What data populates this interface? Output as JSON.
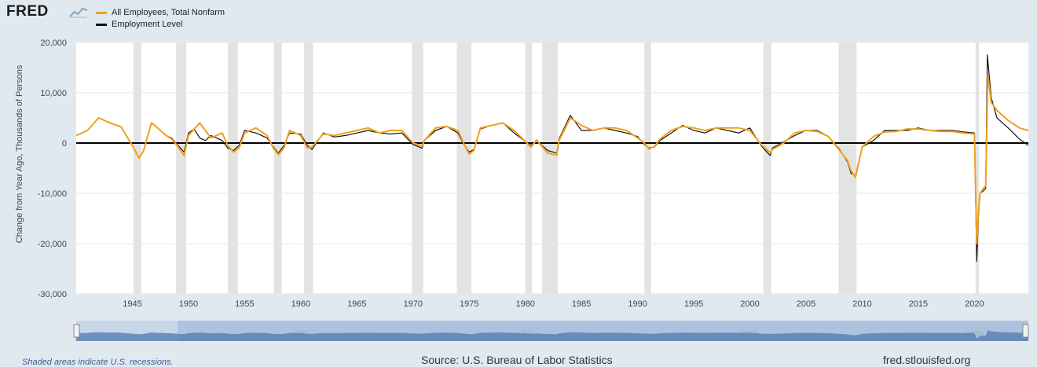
{
  "brand": {
    "logo": "FRED",
    "logo_icon": "line-chart-icon"
  },
  "footer": {
    "recession_note": "Shaded areas indicate U.S. recessions.",
    "source": "Source: U.S. Bureau of Labor Statistics",
    "site": "fred.stlouisfed.org"
  },
  "colors": {
    "series1": "#f0a01e",
    "series2": "#111111",
    "recession": "#e3e3e3",
    "navigator": "#4f79ad"
  },
  "chart_data": {
    "type": "line",
    "title": "",
    "xlabel": "",
    "ylabel": "Change from Year Ago, Thousands of Persons",
    "xlim": [
      1940,
      2024.8
    ],
    "ylim": [
      -30000,
      20000
    ],
    "y_ticks": [
      {
        "value": 20000,
        "label": "20,000"
      },
      {
        "value": 10000,
        "label": "10,000"
      },
      {
        "value": 0,
        "label": "0"
      },
      {
        "value": -10000,
        "label": "-10,000"
      },
      {
        "value": -20000,
        "label": "-20,000"
      },
      {
        "value": -30000,
        "label": "-30,000"
      }
    ],
    "x_ticks": [
      {
        "value": 1945,
        "label": "1945"
      },
      {
        "value": 1950,
        "label": "1950"
      },
      {
        "value": 1955,
        "label": "1955"
      },
      {
        "value": 1960,
        "label": "1960"
      },
      {
        "value": 1965,
        "label": "1965"
      },
      {
        "value": 1970,
        "label": "1970"
      },
      {
        "value": 1975,
        "label": "1975"
      },
      {
        "value": 1980,
        "label": "1980"
      },
      {
        "value": 1985,
        "label": "1985"
      },
      {
        "value": 1990,
        "label": "1990"
      },
      {
        "value": 1995,
        "label": "1995"
      },
      {
        "value": 2000,
        "label": "2000"
      },
      {
        "value": 2005,
        "label": "2005"
      },
      {
        "value": 2010,
        "label": "2010"
      },
      {
        "value": 2015,
        "label": "2015"
      },
      {
        "value": 2020,
        "label": "2020"
      }
    ],
    "navigator_ticks": [
      {
        "value": 1960,
        "label": "1960"
      },
      {
        "value": 1980,
        "label": "1980"
      },
      {
        "value": 2000,
        "label": "2000"
      },
      {
        "value": 2020,
        "label": "2020"
      }
    ],
    "recessions": [
      [
        1945.1,
        1945.8
      ],
      [
        1948.9,
        1949.8
      ],
      [
        1953.5,
        1954.4
      ],
      [
        1957.6,
        1958.3
      ],
      [
        1960.3,
        1961.1
      ],
      [
        1969.9,
        1970.9
      ],
      [
        1973.9,
        1975.2
      ],
      [
        1980.0,
        1980.6
      ],
      [
        1981.5,
        1982.9
      ],
      [
        1990.6,
        1991.2
      ],
      [
        2001.2,
        2001.9
      ],
      [
        2007.9,
        2009.5
      ],
      [
        2020.1,
        2020.4
      ]
    ],
    "series": [
      {
        "name": "All Employees, Total Nonfarm",
        "color": "#f0a01e",
        "x": [
          1940,
          1941,
          1942,
          1943,
          1944,
          1945,
          1945.6,
          1946,
          1946.7,
          1947,
          1948,
          1948.5,
          1949,
          1949.6,
          1950,
          1951,
          1951.5,
          1952,
          1953,
          1953.5,
          1954,
          1954.5,
          1955,
          1956,
          1957,
          1957.5,
          1958,
          1958.5,
          1959,
          1960,
          1960.6,
          1961,
          1962,
          1963,
          1964,
          1965,
          1966,
          1967,
          1968,
          1969,
          1970,
          1970.8,
          1971,
          1972,
          1973,
          1974,
          1974.5,
          1975,
          1975.4,
          1976,
          1977,
          1978,
          1979,
          1980,
          1980.5,
          1981,
          1982,
          1982.8,
          1983,
          1984,
          1985,
          1986,
          1987,
          1988,
          1989,
          1990,
          1990.6,
          1991,
          1991.5,
          1992,
          1993,
          1994,
          1995,
          1996,
          1997,
          1998,
          1999,
          2000,
          2001,
          2001.8,
          2002,
          2003,
          2004,
          2005,
          2006,
          2007,
          2008,
          2008.7,
          2009,
          2009.4,
          2010,
          2011,
          2012,
          2013,
          2014,
          2015,
          2016,
          2017,
          2018,
          2019,
          2020.0,
          2020.2,
          2020.35,
          2020.5,
          2020.8,
          2021,
          2021.2,
          2021.5,
          2022,
          2023,
          2024,
          2024.8
        ],
        "y": [
          1500,
          2500,
          5000,
          4000,
          3200,
          -500,
          -3000,
          -1500,
          4000,
          3500,
          1500,
          800,
          -500,
          -2500,
          1500,
          4000,
          2500,
          1000,
          2000,
          -500,
          -1800,
          -1000,
          2000,
          3000,
          1500,
          -800,
          -2300,
          -1000,
          2500,
          1500,
          -1000,
          -800,
          1800,
          1500,
          2000,
          2500,
          3000,
          2000,
          2500,
          2500,
          0,
          -600,
          500,
          3000,
          3300,
          2500,
          0,
          -2200,
          -1500,
          3000,
          3500,
          4000,
          2500,
          300,
          -800,
          600,
          -2000,
          -2400,
          500,
          5000,
          3500,
          2500,
          3000,
          3000,
          2500,
          1000,
          0,
          -1200,
          -700,
          800,
          2500,
          3300,
          3000,
          2500,
          3000,
          3000,
          3000,
          2500,
          -300,
          -1900,
          -1300,
          0,
          2000,
          2500,
          2300,
          1300,
          -1500,
          -3500,
          -5500,
          -6800,
          -800,
          1300,
          2200,
          2300,
          2800,
          2800,
          2500,
          2300,
          2300,
          2000,
          1800,
          -20000,
          -14000,
          -10000,
          -9000,
          -8500,
          13500,
          8000,
          6500,
          4500,
          3000,
          2500
        ]
      },
      {
        "name": "Employment Level",
        "color": "#111111",
        "x": [
          1948,
          1948.5,
          1949,
          1949.6,
          1950,
          1950.5,
          1951,
          1951.5,
          1952,
          1953,
          1953.5,
          1954,
          1954.5,
          1955,
          1956,
          1957,
          1957.5,
          1958,
          1958.5,
          1959,
          1960,
          1960.6,
          1961,
          1962,
          1963,
          1964,
          1965,
          1966,
          1967,
          1968,
          1969,
          1970,
          1970.8,
          1971,
          1972,
          1973,
          1974,
          1974.5,
          1975,
          1975.4,
          1976,
          1977,
          1978,
          1979,
          1980,
          1980.5,
          1981,
          1982,
          1982.8,
          1983,
          1984,
          1985,
          1986,
          1987,
          1988,
          1989,
          1990,
          1990.6,
          1991,
          1991.5,
          1992,
          1993,
          1994,
          1995,
          1996,
          1997,
          1998,
          1999,
          2000,
          2001,
          2001.8,
          2002,
          2003,
          2004,
          2005,
          2006,
          2007,
          2008,
          2008.7,
          2009,
          2009.4,
          2010,
          2011,
          2012,
          2013,
          2014,
          2015,
          2016,
          2017,
          2018,
          2019,
          2020.0,
          2020.2,
          2020.35,
          2020.5,
          2020.8,
          2021,
          2021.15,
          2021.5,
          2022,
          2023,
          2024,
          2024.8
        ],
        "y": [
          1500,
          1000,
          -300,
          -1800,
          2000,
          2800,
          1000,
          500,
          1500,
          500,
          -1000,
          -1500,
          -500,
          2500,
          2000,
          1000,
          -600,
          -2000,
          -500,
          2000,
          1800,
          -500,
          -1300,
          2000,
          1200,
          1500,
          2000,
          2500,
          2000,
          1800,
          2000,
          -300,
          -1000,
          500,
          2500,
          3300,
          2000,
          -200,
          -1800,
          -1300,
          2800,
          3500,
          4000,
          2000,
          300,
          -500,
          500,
          -1500,
          -2000,
          800,
          5500,
          2500,
          2500,
          3000,
          2500,
          2000,
          1300,
          -300,
          -1000,
          -800,
          500,
          2000,
          3500,
          2500,
          2000,
          3000,
          2500,
          2000,
          3000,
          -500,
          -2500,
          -1000,
          200,
          1500,
          2500,
          2500,
          1300,
          -1300,
          -3800,
          -6000,
          -6500,
          -800,
          500,
          2500,
          2500,
          2500,
          3000,
          2500,
          2500,
          2500,
          2200,
          2000,
          -23500,
          -15000,
          -10000,
          -9500,
          -9000,
          17500,
          9000,
          5000,
          3000,
          800,
          -500
        ]
      }
    ]
  }
}
